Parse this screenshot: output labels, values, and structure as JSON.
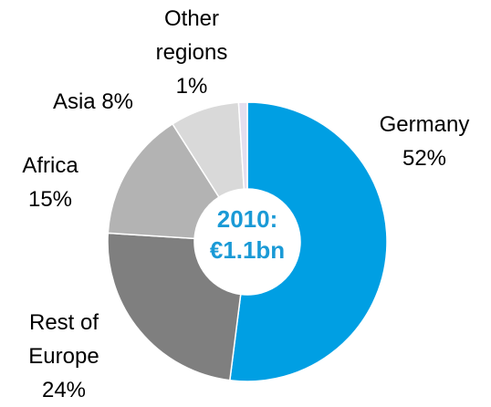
{
  "chart_data": {
    "type": "donut",
    "center_label": "2010: €1.1bn",
    "categories": [
      "Germany",
      "Rest of Europe",
      "Africa",
      "Asia",
      "Other regions"
    ],
    "values": [
      52,
      24,
      15,
      8,
      1
    ],
    "value_labels": [
      "52%",
      "24%",
      "15%",
      "8%",
      "1%"
    ],
    "colors": [
      "#009fe3",
      "#7f7f7f",
      "#b3b3b3",
      "#d9d9d9",
      "#e4deee"
    ]
  }
}
